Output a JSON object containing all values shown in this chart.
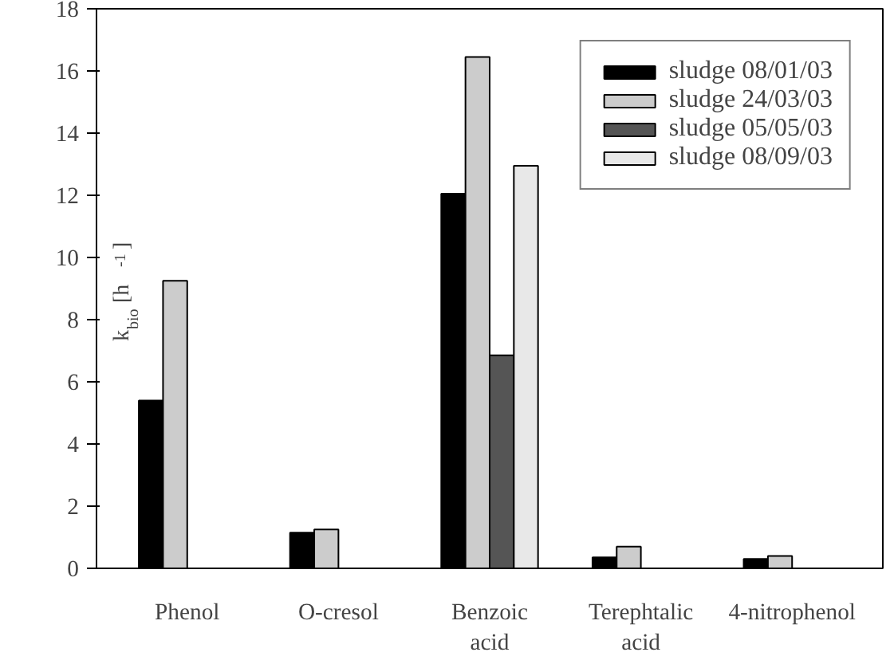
{
  "chart_data": {
    "type": "bar",
    "ylabel": "k$_{bio}$ [h$^{-1}$]",
    "categories": [
      "Phenol",
      "O-cresol",
      "Benzoic\nacid",
      "Terephtalic\nacid",
      "4-nitrophenol"
    ],
    "series": [
      {
        "name": "sludge 08/01/03",
        "color": "#000000",
        "values": [
          5.4,
          1.15,
          12.05,
          0.35,
          0.3
        ]
      },
      {
        "name": "sludge 24/03/03",
        "color": "#cccccc",
        "values": [
          9.25,
          1.25,
          16.45,
          0.7,
          0.4
        ]
      },
      {
        "name": "sludge 05/05/03",
        "color": "#555555",
        "values": [
          null,
          null,
          6.85,
          null,
          null
        ]
      },
      {
        "name": "sludge 08/09/03",
        "color": "#e8e8e8",
        "values": [
          null,
          null,
          12.95,
          null,
          null
        ]
      }
    ],
    "ylim": [
      0,
      18
    ],
    "yticks": [
      0,
      2,
      4,
      6,
      8,
      10,
      12,
      14,
      16,
      18
    ],
    "grid": false,
    "legend": "top right"
  }
}
